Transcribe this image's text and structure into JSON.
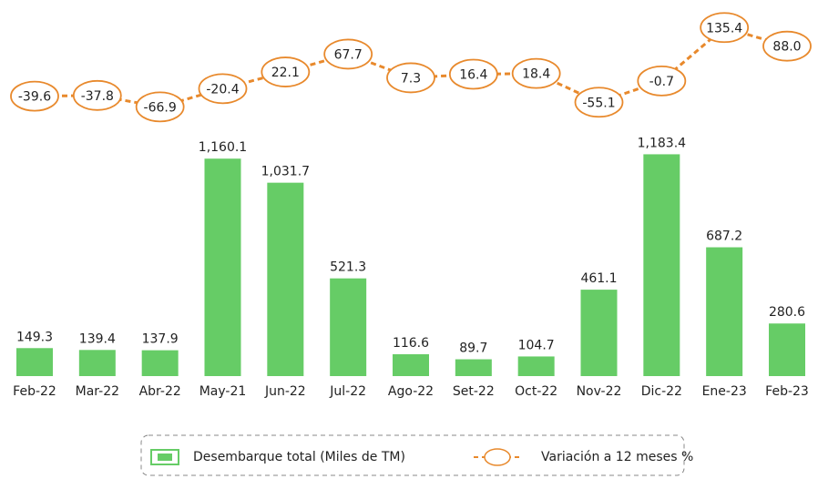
{
  "chart_data": {
    "type": "bar",
    "categories": [
      "Feb-22",
      "Mar-22",
      "Abr-22",
      "May-21",
      "Jun-22",
      "Jul-22",
      "Ago-22",
      "Set-22",
      "Oct-22",
      "Nov-22",
      "Dic-22",
      "Ene-23",
      "Feb-23"
    ],
    "series": [
      {
        "name": "Desembarque total (Miles de TM)",
        "color": "#66cc66",
        "values": [
          149.3,
          139.4,
          137.9,
          1160.1,
          1031.7,
          521.3,
          116.6,
          89.7,
          104.7,
          461.1,
          1183.4,
          687.2,
          280.6
        ],
        "value_labels": [
          "149.3",
          "139.4",
          "137.9",
          "1,160.1",
          "1,031.7",
          "521.3",
          "116.6",
          "89.7",
          "104.7",
          "461.1",
          "1,183.4",
          "687.2",
          "280.6"
        ]
      },
      {
        "name": "Variación a 12 meses %",
        "type": "line",
        "axis": "y2",
        "color": "#e8892c",
        "values": [
          -39.6,
          -37.8,
          -66.9,
          -20.4,
          22.1,
          67.7,
          7.3,
          16.4,
          18.4,
          -55.1,
          -0.7,
          135.4,
          88.0
        ],
        "value_labels": [
          "-39.6",
          "-37.8",
          "-66.9",
          "-20.4",
          "22.1",
          "67.7",
          "7.3",
          "16.4",
          "18.4",
          "-55.1",
          "-0.7",
          "135.4",
          "88.0"
        ]
      }
    ],
    "ylim": [
      0,
      1200
    ],
    "y2lim": [
      -80,
      150
    ],
    "legend": "bottom"
  }
}
